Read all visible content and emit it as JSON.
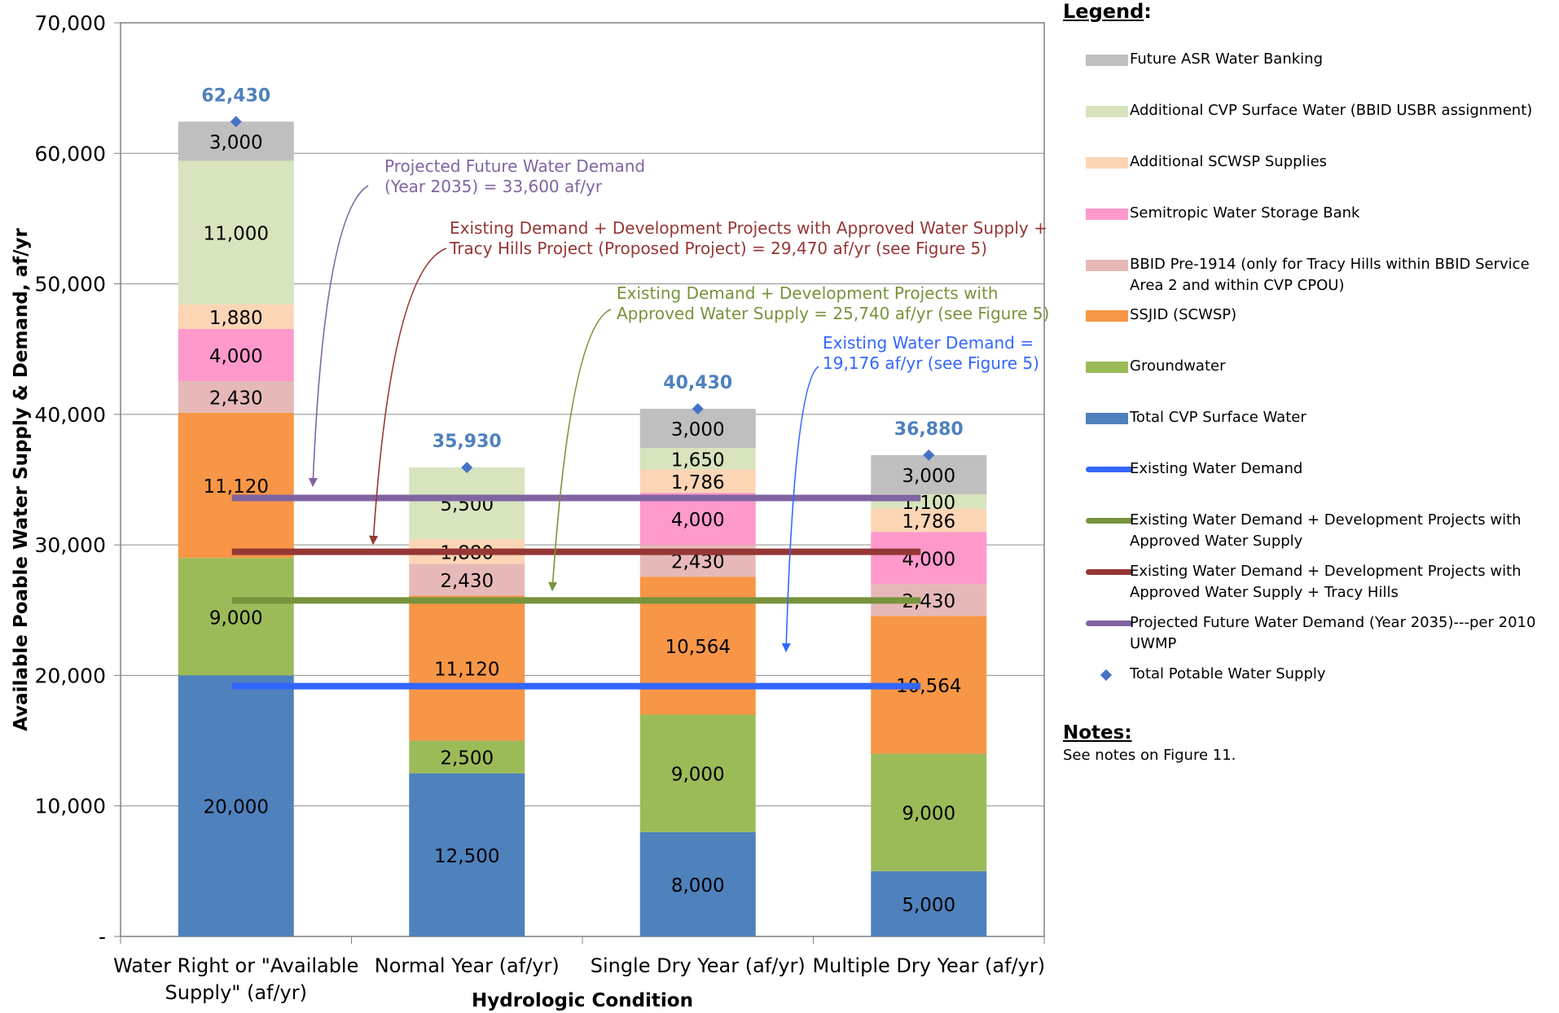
{
  "chart_data": {
    "type": "bar",
    "stacked": true,
    "xlabel": "Hydrologic Condition",
    "ylabel": "Available Poable Water Supply & Demand, af/yr",
    "ylim": [
      0,
      70000
    ],
    "yticks": [
      {
        "value": 0,
        "label": "-"
      },
      {
        "value": 10000,
        "label": "10,000"
      },
      {
        "value": 20000,
        "label": "20,000"
      },
      {
        "value": 30000,
        "label": "30,000"
      },
      {
        "value": 40000,
        "label": "40,000"
      },
      {
        "value": 50000,
        "label": "50,000"
      },
      {
        "value": 60000,
        "label": "60,000"
      },
      {
        "value": 70000,
        "label": "70,000"
      }
    ],
    "grid": true,
    "legend_position": "right",
    "categories": [
      [
        "Water Right or \"Available",
        "Supply\" (af/yr)"
      ],
      [
        "Normal Year (af/yr)"
      ],
      [
        "Single Dry Year (af/yr)"
      ],
      [
        "Multiple Dry Year (af/yr)"
      ]
    ],
    "series": [
      {
        "name": "Total CVP Surface Water",
        "color": "#4f81bd",
        "values": [
          20000,
          12500,
          8000,
          5000
        ],
        "labels": [
          "20,000",
          "12,500",
          "8,000",
          "5,000"
        ]
      },
      {
        "name": "Groundwater",
        "color": "#9bbb59",
        "values": [
          9000,
          2500,
          9000,
          9000
        ],
        "labels": [
          "9,000",
          "2,500",
          "9,000",
          "9,000"
        ]
      },
      {
        "name": "SSJID (SCWSP)",
        "color": "#f79646",
        "values": [
          11120,
          11120,
          10564,
          10564
        ],
        "labels": [
          "11,120",
          "11,120",
          "10,564",
          "10,564"
        ]
      },
      {
        "name": "BBID Pre-1914 (only for Tracy Hills within BBID Service Area 2 and within CVP CPOU)",
        "color": "#e6b9b8",
        "values": [
          2430,
          2430,
          2430,
          2430
        ],
        "labels": [
          "2,430",
          "2,430",
          "2,430",
          "2,430"
        ]
      },
      {
        "name": "Semitropic Water Storage Bank",
        "color": "#ff99cc",
        "values": [
          4000,
          0,
          4000,
          4000
        ],
        "labels": [
          "4,000",
          "",
          "4,000",
          "4,000"
        ]
      },
      {
        "name": "Additional SCWSP Supplies",
        "color": "#fcd5b5",
        "values": [
          1880,
          1880,
          1786,
          1786
        ],
        "labels": [
          "1,880",
          "1,880",
          "1,786",
          "1,786"
        ]
      },
      {
        "name": "Additional CVP Surface Water (BBID USBR assignment)",
        "color": "#d7e4bd",
        "values": [
          11000,
          5500,
          1650,
          1100
        ],
        "labels": [
          "11,000",
          "5,500",
          "1,650",
          "1,100"
        ]
      },
      {
        "name": "Future ASR Water Banking",
        "color": "#bfbfbf",
        "values": [
          3000,
          0,
          3000,
          3000
        ],
        "labels": [
          "3,000",
          "",
          "3,000",
          "3,000"
        ]
      }
    ],
    "totals": {
      "name": "Total Potable Water Supply",
      "color": "#4472c4",
      "values": [
        62430,
        35930,
        40430,
        36880
      ],
      "labels": [
        "62,430",
        "35,930",
        "40,430",
        "36,880"
      ]
    },
    "demand_lines": [
      {
        "name": "Existing Water Demand",
        "color": "#3366ff",
        "value": 19176,
        "annotation": [
          "Existing Water Demand =",
          "19,176 af/yr (see Figure 5)"
        ]
      },
      {
        "name": "Existing Water Demand + Development Projects with Approved Water Supply",
        "color": "#77933c",
        "value": 25740,
        "annotation": [
          "Existing Demand + Development Projects with",
          "Approved Water Supply = 25,740 af/yr (see Figure 5)"
        ]
      },
      {
        "name": "Existing Water Demand + Development Projects with Approved Water Supply + Tracy Hills",
        "color": "#953735",
        "value": 29470,
        "annotation": [
          "Existing Demand + Development Projects with Approved Water Supply +",
          "Tracy Hills Project (Proposed Project) = 29,470  af/yr (see Figure 5)"
        ]
      },
      {
        "name": "Projected Future Water Demand (Year 2035)---per 2010 UWMP",
        "color": "#8064a2",
        "value": 33600,
        "annotation": [
          "Projected Future Water Demand",
          "(Year 2035) = 33,600 af/yr"
        ]
      }
    ]
  },
  "legend": {
    "title": "Legend",
    "items": [
      {
        "label": "Future ASR Water Banking",
        "kind": "box",
        "color": "#bfbfbf"
      },
      {
        "label": "Additional CVP Surface Water (BBID USBR assignment)",
        "kind": "box",
        "color": "#d7e4bd"
      },
      {
        "label": "Additional SCWSP Supplies",
        "kind": "box",
        "color": "#fcd5b5"
      },
      {
        "label": "Semitropic Water Storage Bank",
        "kind": "box",
        "color": "#ff99cc"
      },
      {
        "label": "BBID Pre-1914 (only for Tracy Hills within BBID Service Area 2 and within CVP CPOU)",
        "kind": "box",
        "color": "#e6b9b8"
      },
      {
        "label": "SSJID (SCWSP)",
        "kind": "box",
        "color": "#f79646"
      },
      {
        "label": "Groundwater",
        "kind": "box",
        "color": "#9bbb59"
      },
      {
        "label": "Total CVP Surface Water",
        "kind": "box",
        "color": "#4f81bd"
      },
      {
        "label": "Existing Water Demand",
        "kind": "line",
        "color": "#3366ff"
      },
      {
        "label": "Existing Water Demand + Development Projects with Approved Water Supply",
        "kind": "line",
        "color": "#77933c"
      },
      {
        "label": "Existing Water Demand + Development Projects with Approved Water Supply + Tracy Hills",
        "kind": "line",
        "color": "#953735"
      },
      {
        "label": "Projected Future Water Demand (Year 2035)---per 2010 UWMP",
        "kind": "line",
        "color": "#8064a2"
      },
      {
        "label": "Total Potable Water Supply",
        "kind": "diamond",
        "color": "#4472c4"
      }
    ]
  },
  "notes": {
    "title": "Notes:",
    "text": "See notes on Figure 11."
  }
}
